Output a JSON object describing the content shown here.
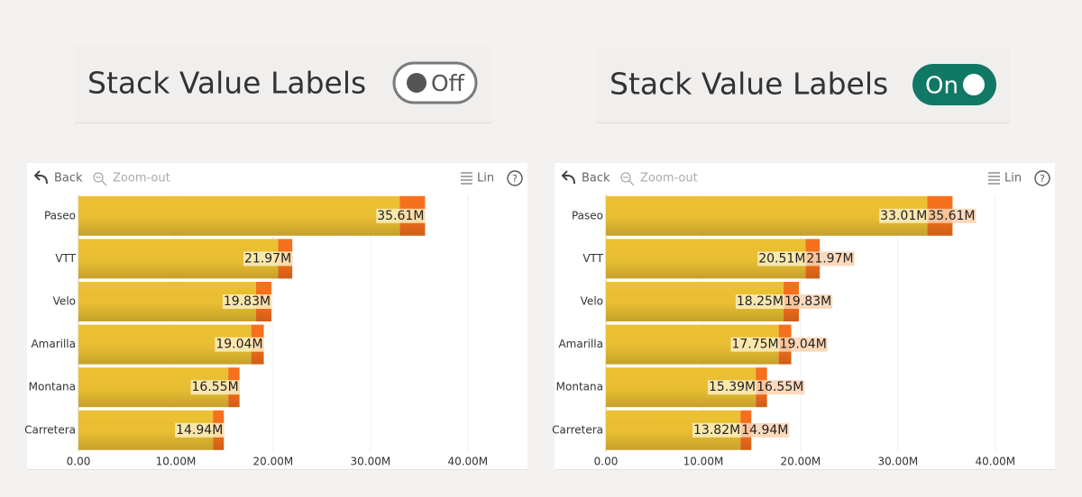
{
  "toggles": [
    {
      "label": "Stack Value Labels",
      "state": "Off",
      "on": false
    },
    {
      "label": "Stack Value Labels",
      "state": "On",
      "on": true
    }
  ],
  "chart_data": [
    {
      "type": "bar",
      "orientation": "horizontal",
      "stacked": true,
      "stack_value_labels": false,
      "toolbar": {
        "back": "Back",
        "zoom": "Zoom-out",
        "scale": "Lin",
        "help": "?"
      },
      "categories": [
        "Paseo",
        "VTT",
        "Velo",
        "Amarilla",
        "Montana",
        "Carretera"
      ],
      "series": [
        {
          "color": "#e8bd32",
          "values": [
            33010000,
            20510000,
            18250000,
            17750000,
            15390000,
            13820000
          ]
        },
        {
          "color": "#f26f1c",
          "values": [
            2600000,
            1460000,
            1580000,
            1290000,
            1160000,
            1120000
          ]
        }
      ],
      "totals": [
        35610000,
        21970000,
        19830000,
        19040000,
        16550000,
        14940000
      ],
      "total_labels": [
        "35.61M",
        "21.97M",
        "19.83M",
        "19.04M",
        "16.55M",
        "14.94M"
      ],
      "xlim": [
        0,
        44000000
      ],
      "xticks": [
        {
          "value": 0,
          "label": "0.00"
        },
        {
          "value": 10000000,
          "label": "10.00M"
        },
        {
          "value": 20000000,
          "label": "20.00M"
        },
        {
          "value": 30000000,
          "label": "30.00M"
        },
        {
          "value": 40000000,
          "label": "40.00M"
        }
      ],
      "grid": true
    },
    {
      "type": "bar",
      "orientation": "horizontal",
      "stacked": true,
      "stack_value_labels": true,
      "toolbar": {
        "back": "Back",
        "zoom": "Zoom-out",
        "scale": "Lin",
        "help": "?"
      },
      "categories": [
        "Paseo",
        "VTT",
        "Velo",
        "Amarilla",
        "Montana",
        "Carretera"
      ],
      "series": [
        {
          "color": "#e8bd32",
          "values": [
            33010000,
            20510000,
            18250000,
            17750000,
            15390000,
            13820000
          ],
          "value_labels": [
            "33.01M",
            "20.51M",
            "18.25M",
            "17.75M",
            "15.39M",
            "13.82M"
          ]
        },
        {
          "color": "#f26f1c",
          "values": [
            2600000,
            1460000,
            1580000,
            1290000,
            1160000,
            1120000
          ]
        }
      ],
      "totals": [
        35610000,
        21970000,
        19830000,
        19040000,
        16550000,
        14940000
      ],
      "total_labels": [
        "35.61M",
        "21.97M",
        "19.83M",
        "19.04M",
        "16.55M",
        "14.94M"
      ],
      "xlim": [
        0,
        44000000
      ],
      "xticks": [
        {
          "value": 0,
          "label": "0.00"
        },
        {
          "value": 10000000,
          "label": "10.00M"
        },
        {
          "value": 20000000,
          "label": "20.00M"
        },
        {
          "value": 30000000,
          "label": "30.00M"
        },
        {
          "value": 40000000,
          "label": "40.00M"
        }
      ],
      "grid": true
    }
  ]
}
